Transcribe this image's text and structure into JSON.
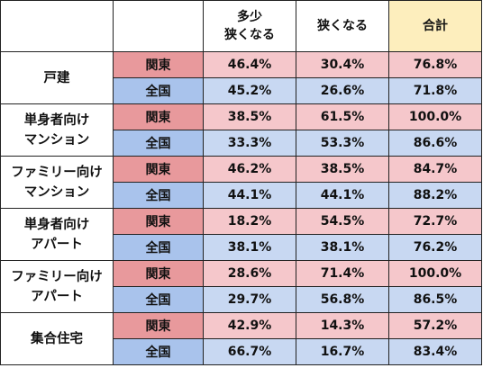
{
  "header": {
    "col_somewhat": [
      "多少",
      "狭くなる"
    ],
    "col_narrow": "狭くなる",
    "col_total": "合計"
  },
  "colors": {
    "kanto_label": "#e8999c",
    "kanto_value": "#f5c7cb",
    "zenkoku_label": "#a9c3ec",
    "zenkoku_value": "#c8d8f2",
    "total_header": "#fdeebd"
  },
  "groups": [
    {
      "category": [
        "戸建"
      ],
      "rows": [
        {
          "region": "関東",
          "somewhat": "46.4%",
          "narrow": "30.4%",
          "total": "76.8%"
        },
        {
          "region": "全国",
          "somewhat": "45.2%",
          "narrow": "26.6%",
          "total": "71.8%"
        }
      ]
    },
    {
      "category": [
        "単身者向け",
        "マンション"
      ],
      "rows": [
        {
          "region": "関東",
          "somewhat": "38.5%",
          "narrow": "61.5%",
          "total": "100.0%"
        },
        {
          "region": "全国",
          "somewhat": "33.3%",
          "narrow": "53.3%",
          "total": "86.6%"
        }
      ]
    },
    {
      "category": [
        "ファミリー向け",
        "マンション"
      ],
      "rows": [
        {
          "region": "関東",
          "somewhat": "46.2%",
          "narrow": "38.5%",
          "total": "84.7%"
        },
        {
          "region": "全国",
          "somewhat": "44.1%",
          "narrow": "44.1%",
          "total": "88.2%"
        }
      ]
    },
    {
      "category": [
        "単身者向け",
        "アパート"
      ],
      "rows": [
        {
          "region": "関東",
          "somewhat": "18.2%",
          "narrow": "54.5%",
          "total": "72.7%"
        },
        {
          "region": "全国",
          "somewhat": "38.1%",
          "narrow": "38.1%",
          "total": "76.2%"
        }
      ]
    },
    {
      "category": [
        "ファミリー向け",
        "アパート"
      ],
      "rows": [
        {
          "region": "関東",
          "somewhat": "28.6%",
          "narrow": "71.4%",
          "total": "100.0%"
        },
        {
          "region": "全国",
          "somewhat": "29.7%",
          "narrow": "56.8%",
          "total": "86.5%"
        }
      ]
    },
    {
      "category": [
        "集合住宅"
      ],
      "rows": [
        {
          "region": "関東",
          "somewhat": "42.9%",
          "narrow": "14.3%",
          "total": "57.2%"
        },
        {
          "region": "全国",
          "somewhat": "66.7%",
          "narrow": "16.7%",
          "total": "83.4%"
        }
      ]
    }
  ]
}
